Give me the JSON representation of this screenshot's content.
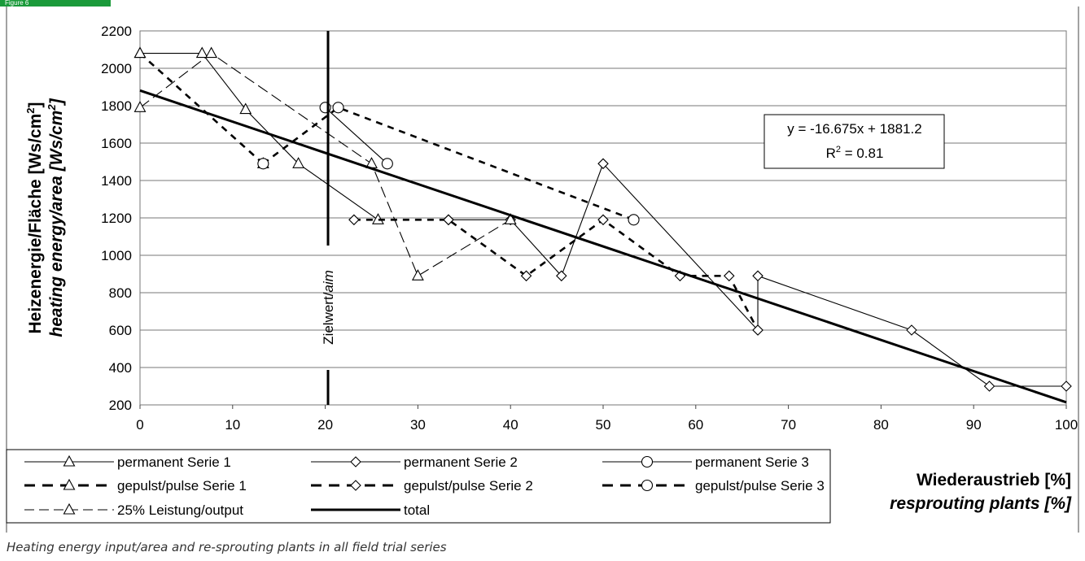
{
  "header": {
    "tab_label": "Figure 6"
  },
  "caption": "Heating energy input/area and re-sprouting plants in all field trial series",
  "chart_data": {
    "type": "line",
    "ylabel_de": "Heizenergie/Fläche [Ws/cm",
    "ylabel_en": "heating energy/area [Ws/cm",
    "ylabel_sup": "2",
    "ylabel_close": "]",
    "xlabel_de": "Wiederaustrieb [%]",
    "xlabel_en": "resprouting plants [%]",
    "xlim": [
      0,
      100
    ],
    "ylim": [
      200,
      2200
    ],
    "xticks": [
      0,
      10,
      20,
      30,
      40,
      50,
      60,
      70,
      80,
      90,
      100
    ],
    "yticks": [
      200,
      400,
      600,
      800,
      1000,
      1200,
      1400,
      1600,
      1800,
      2000,
      2200
    ],
    "grid": "horizontal",
    "aim_line": {
      "x": 20.3,
      "label_de": "Zielwert/",
      "label_en": "aim"
    },
    "equation": {
      "line1": "y = -16.675x + 1881.2",
      "line2_pre": "R",
      "line2_sup": "2",
      "line2_post": " = 0.81"
    },
    "series": [
      {
        "name": "permanent Serie 1",
        "marker": "triangle",
        "dash": "solid",
        "x": [
          0,
          6.7,
          11.4,
          17.1,
          25.7
        ],
        "y": [
          2080,
          2080,
          1780,
          1490,
          1190
        ]
      },
      {
        "name": "permanent Serie 2",
        "marker": "diamond",
        "dash": "solid",
        "x": [
          33.3,
          40,
          45.5,
          50,
          66.7,
          66.7,
          83.3,
          91.7,
          100
        ],
        "y": [
          1190,
          1190,
          890,
          1490,
          600,
          890,
          600,
          300,
          300
        ]
      },
      {
        "name": "permanent Serie 3",
        "marker": "circle",
        "dash": "solid",
        "x": [
          20,
          26.7
        ],
        "y": [
          1790,
          1490
        ]
      },
      {
        "name": "gepulst/pulse Serie 1",
        "marker": "triangle",
        "dash": "dashed",
        "x": [
          0,
          13.3
        ],
        "y": [
          2080,
          1490
        ]
      },
      {
        "name": "gepulst/pulse Serie 2",
        "marker": "diamond",
        "dash": "dashed",
        "x": [
          23.1,
          33.3,
          41.7,
          50,
          58.3,
          63.6,
          66.7
        ],
        "y": [
          1190,
          1190,
          890,
          1190,
          890,
          890,
          600
        ]
      },
      {
        "name": "gepulst/pulse Serie 3",
        "marker": "circle",
        "dash": "dashed",
        "x": [
          13.3,
          21.4,
          53.3
        ],
        "y": [
          1490,
          1790,
          1190
        ]
      },
      {
        "name": "25% Leistung/output",
        "marker": "triangle",
        "dash": "longdash",
        "x": [
          0,
          7.7,
          25,
          30,
          40
        ],
        "y": [
          1790,
          2080,
          1490,
          890,
          1190
        ]
      },
      {
        "name": "total",
        "marker": "none",
        "dash": "thick",
        "x": [
          0,
          100
        ],
        "y": [
          1881.2,
          213.7
        ]
      }
    ]
  }
}
